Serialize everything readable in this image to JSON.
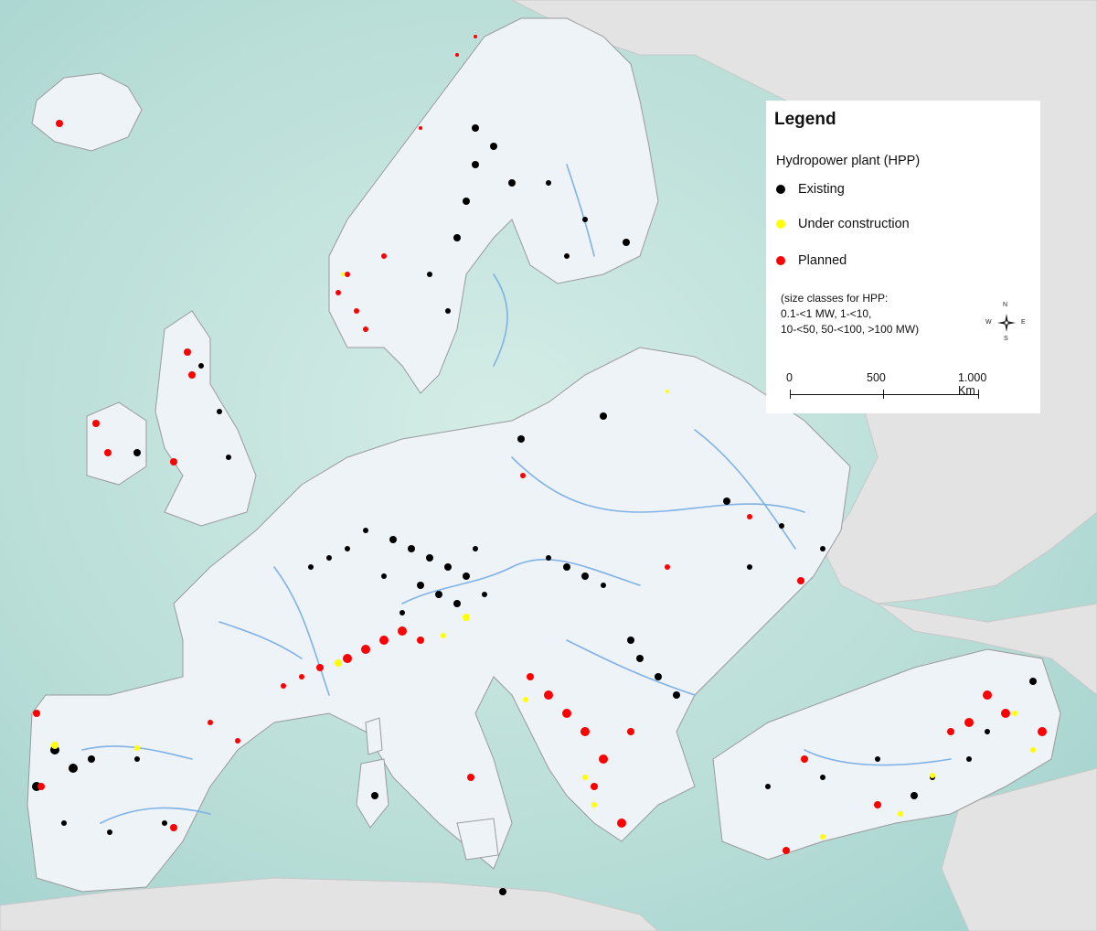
{
  "legend": {
    "title": "Legend",
    "subtitle": "Hydropower plant (HPP)",
    "items": [
      {
        "label": "Existing",
        "color": "#000000"
      },
      {
        "label": "Under construction",
        "color": "#ffff00"
      },
      {
        "label": "Planned",
        "color": "#ff0000"
      }
    ],
    "note_lines": [
      "(size classes for HPP:",
      "0.1-<1 MW, 1-<10,",
      "10-<50, 50-<100, >100 MW)"
    ],
    "scale": {
      "labels": [
        "0",
        "500",
        "1.000 Km"
      ]
    },
    "compass": {
      "n": "N",
      "s": "S",
      "e": "E",
      "w": "W"
    }
  },
  "colors": {
    "sea": "#b6dcd6",
    "land": "#eef3f8",
    "outer_land": "#e2e2e2",
    "river": "#7fb2e6",
    "existing": "#000000",
    "under_construction": "#ffff00",
    "planned": "#ff0000"
  }
}
